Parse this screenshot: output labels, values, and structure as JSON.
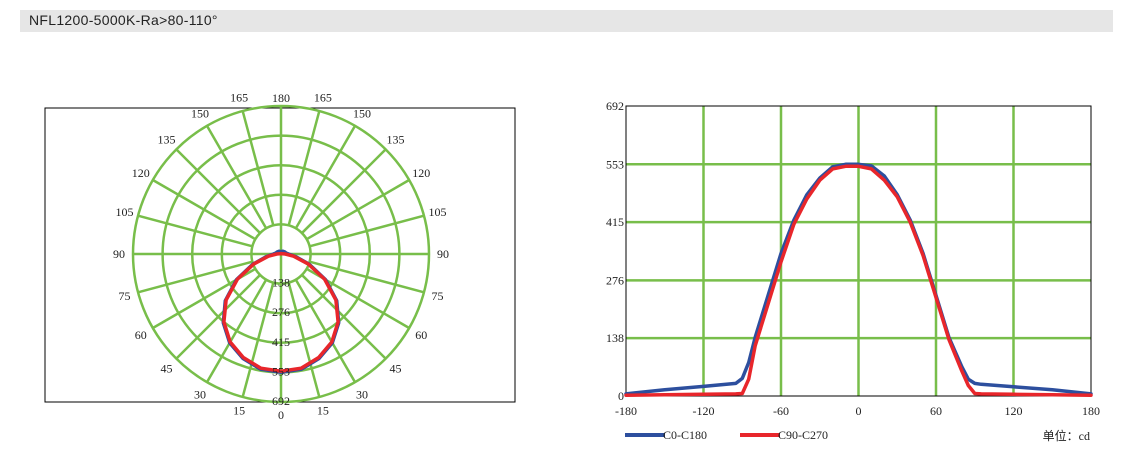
{
  "header": {
    "title": "NFL1200-5000K-Ra>80-110°"
  },
  "unit_label": "单位：cd",
  "colors": {
    "grid": "#78be4a",
    "c0": "#2d4f9e",
    "c90": "#e8262b",
    "axis": "#000000"
  },
  "chart_data": [
    {
      "type": "polar",
      "angle_labels_left": [
        "165",
        "150",
        "135",
        "120",
        "105",
        "90",
        "75",
        "60",
        "45",
        "30",
        "15"
      ],
      "angle_labels_right": [
        "165",
        "150",
        "135",
        "120",
        "105",
        "90",
        "75",
        "60",
        "45",
        "30",
        "15"
      ],
      "angle_label_top": "180",
      "angle_label_bottom": "0",
      "radial_labels": [
        "138",
        "276",
        "415",
        "553",
        "692"
      ],
      "rmax": 692,
      "series": [
        {
          "name": "C0-C180",
          "theta": [
            0,
            10,
            20,
            30,
            40,
            50,
            60,
            70,
            80,
            90,
            100,
            120,
            150,
            180
          ],
          "r": [
            553,
            547,
            520,
            480,
            420,
            340,
            240,
            140,
            70,
            35,
            25,
            20,
            15,
            10
          ]
        },
        {
          "name": "C90-C270",
          "theta": [
            0,
            10,
            20,
            30,
            40,
            50,
            60,
            70,
            80,
            90,
            100,
            120,
            150,
            180
          ],
          "r": [
            548,
            542,
            515,
            475,
            415,
            335,
            235,
            135,
            60,
            20,
            8,
            3,
            2,
            1
          ]
        }
      ]
    },
    {
      "type": "line",
      "x_ticks": [
        "-180",
        "-120",
        "-60",
        "0",
        "60",
        "120",
        "180"
      ],
      "y_ticks": [
        "0",
        "138",
        "276",
        "415",
        "553",
        "692"
      ],
      "xlim": [
        -180,
        180
      ],
      "ylim": [
        0,
        692
      ],
      "series": [
        {
          "name": "C0-C180",
          "x": [
            -180,
            -150,
            -120,
            -95,
            -90,
            -85,
            -80,
            -70,
            -60,
            -50,
            -40,
            -30,
            -20,
            -10,
            0,
            10,
            20,
            30,
            40,
            50,
            60,
            70,
            80,
            85,
            90,
            95,
            120,
            150,
            180
          ],
          "y": [
            5,
            15,
            23,
            30,
            42,
            80,
            140,
            240,
            340,
            420,
            480,
            520,
            547,
            553,
            553,
            549,
            525,
            480,
            420,
            340,
            240,
            140,
            70,
            40,
            30,
            28,
            22,
            15,
            5
          ]
        },
        {
          "name": "C90-C270",
          "x": [
            -180,
            -150,
            -120,
            -95,
            -90,
            -85,
            -80,
            -70,
            -60,
            -50,
            -40,
            -30,
            -20,
            -10,
            0,
            10,
            20,
            30,
            40,
            50,
            60,
            70,
            80,
            85,
            90,
            95,
            120,
            150,
            180
          ],
          "y": [
            2,
            3,
            4,
            5,
            6,
            40,
            120,
            220,
            320,
            410,
            470,
            515,
            542,
            548,
            548,
            542,
            515,
            475,
            415,
            335,
            235,
            135,
            60,
            25,
            6,
            5,
            4,
            3,
            2
          ]
        }
      ]
    }
  ]
}
